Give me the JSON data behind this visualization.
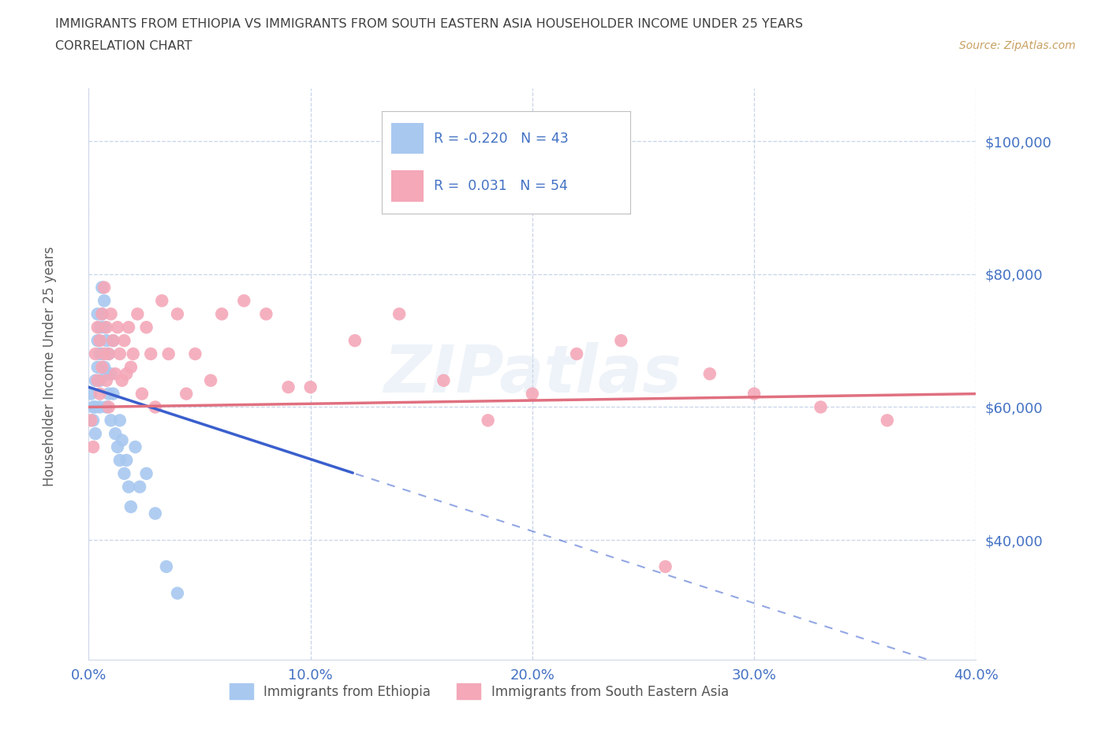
{
  "title_line1": "IMMIGRANTS FROM ETHIOPIA VS IMMIGRANTS FROM SOUTH EASTERN ASIA HOUSEHOLDER INCOME UNDER 25 YEARS",
  "title_line2": "CORRELATION CHART",
  "source_text": "Source: ZipAtlas.com",
  "ylabel": "Householder Income Under 25 years",
  "xlim": [
    0.0,
    0.4
  ],
  "ylim": [
    22000,
    108000
  ],
  "yticks": [
    40000,
    60000,
    80000,
    100000
  ],
  "ytick_labels": [
    "$40,000",
    "$60,000",
    "$80,000",
    "$100,000"
  ],
  "xticks": [
    0.0,
    0.1,
    0.2,
    0.3,
    0.4
  ],
  "xtick_labels": [
    "0.0%",
    "10.0%",
    "20.0%",
    "30.0%",
    "40.0%"
  ],
  "watermark": "ZIPatlas",
  "legend_labels": [
    "Immigrants from Ethiopia",
    "Immigrants from South Eastern Asia"
  ],
  "r_ethiopia": -0.22,
  "n_ethiopia": 43,
  "r_sea": 0.031,
  "n_sea": 54,
  "color_ethiopia": "#a8c8f0",
  "color_sea": "#f4a8b8",
  "line_color_ethiopia": "#3a5fcd",
  "line_color_sea": "#e07080",
  "background_color": "#ffffff",
  "grid_color": "#c8d4e8",
  "title_color": "#404040",
  "axis_tick_color": "#4472c4",
  "ylabel_color": "#606060",
  "legend_r_color": "#4472c4",
  "legend_border_color": "#c0c0c0",
  "source_color": "#c8a060",
  "ethiopia_x": [
    0.001,
    0.002,
    0.002,
    0.003,
    0.003,
    0.003,
    0.004,
    0.004,
    0.004,
    0.005,
    0.005,
    0.005,
    0.005,
    0.006,
    0.006,
    0.006,
    0.007,
    0.007,
    0.007,
    0.008,
    0.008,
    0.008,
    0.009,
    0.009,
    0.01,
    0.01,
    0.011,
    0.011,
    0.012,
    0.013,
    0.014,
    0.014,
    0.015,
    0.016,
    0.017,
    0.018,
    0.019,
    0.021,
    0.023,
    0.026,
    0.03,
    0.035,
    0.04
  ],
  "ethiopia_y": [
    62000,
    60000,
    58000,
    64000,
    60000,
    56000,
    74000,
    70000,
    66000,
    72000,
    68000,
    64000,
    60000,
    78000,
    74000,
    68000,
    76000,
    72000,
    66000,
    70000,
    65000,
    60000,
    68000,
    62000,
    65000,
    58000,
    70000,
    62000,
    56000,
    54000,
    58000,
    52000,
    55000,
    50000,
    52000,
    48000,
    45000,
    54000,
    48000,
    50000,
    44000,
    36000,
    32000
  ],
  "sea_x": [
    0.001,
    0.002,
    0.003,
    0.004,
    0.004,
    0.005,
    0.005,
    0.006,
    0.006,
    0.007,
    0.007,
    0.008,
    0.008,
    0.009,
    0.009,
    0.01,
    0.011,
    0.012,
    0.013,
    0.014,
    0.015,
    0.016,
    0.017,
    0.018,
    0.019,
    0.02,
    0.022,
    0.024,
    0.026,
    0.028,
    0.03,
    0.033,
    0.036,
    0.04,
    0.044,
    0.048,
    0.055,
    0.06,
    0.07,
    0.08,
    0.09,
    0.1,
    0.12,
    0.14,
    0.16,
    0.18,
    0.2,
    0.22,
    0.24,
    0.26,
    0.28,
    0.3,
    0.33,
    0.36
  ],
  "sea_y": [
    58000,
    54000,
    68000,
    72000,
    64000,
    70000,
    62000,
    74000,
    66000,
    78000,
    68000,
    72000,
    64000,
    68000,
    60000,
    74000,
    70000,
    65000,
    72000,
    68000,
    64000,
    70000,
    65000,
    72000,
    66000,
    68000,
    74000,
    62000,
    72000,
    68000,
    60000,
    76000,
    68000,
    74000,
    62000,
    68000,
    64000,
    74000,
    76000,
    74000,
    63000,
    63000,
    70000,
    74000,
    64000,
    58000,
    62000,
    68000,
    70000,
    36000,
    65000,
    62000,
    60000,
    58000
  ]
}
